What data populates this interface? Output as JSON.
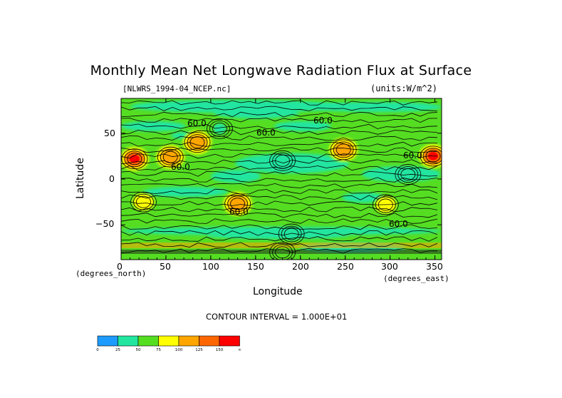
{
  "chart_data": {
    "type": "heatmap",
    "title": "Monthly Mean Net Longwave Radiation Flux at Surface",
    "subtitle_left": "[NLWRS_1994-04_NCEP.nc]",
    "subtitle_right": "(units:W/m^2)",
    "xlabel": "Longitude",
    "ylabel": "Latitude",
    "x_units": "(degrees_east)",
    "y_units": "(degrees_north)",
    "xlim": [
      0,
      357.5
    ],
    "ylim": [
      -88,
      88
    ],
    "x_ticks": [
      0,
      50,
      100,
      150,
      200,
      250,
      300,
      350
    ],
    "y_ticks": [
      50,
      0,
      -50
    ],
    "x_tick_labels": [
      "0",
      "50",
      "100",
      "150",
      "200",
      "250",
      "300",
      "350"
    ],
    "y_tick_labels": [
      "50",
      "0",
      "−50"
    ],
    "contour_interval_text": "CONTOUR INTERVAL = 1.000E+01",
    "contour_labels": [
      "60.0",
      "60.0",
      "60.0",
      "60.0",
      "60.0",
      "60.0",
      "60.0"
    ],
    "colorbar": {
      "levels": [
        0,
        25,
        50,
        75,
        100,
        125,
        150
      ],
      "labels": [
        "0",
        "25",
        "50",
        "75",
        "100",
        "125",
        "150",
        "∞"
      ],
      "colors": [
        "#1e9bff",
        "#22e5a0",
        "#55dd22",
        "#ffff00",
        "#ffa500",
        "#ff6600",
        "#ff0000"
      ]
    },
    "features": [
      {
        "lon": 15,
        "lat": 22,
        "value": 130
      },
      {
        "lon": 55,
        "lat": 24,
        "value": 115
      },
      {
        "lon": 85,
        "lat": 40,
        "value": 105
      },
      {
        "lon": 25,
        "lat": -25,
        "value": 85
      },
      {
        "lon": 130,
        "lat": -27,
        "value": 110
      },
      {
        "lon": 248,
        "lat": 32,
        "value": 112
      },
      {
        "lon": 295,
        "lat": -28,
        "value": 90
      },
      {
        "lon": 348,
        "lat": 25,
        "value": 128
      },
      {
        "lon": 180,
        "lat": 20,
        "value": 30
      },
      {
        "lon": 110,
        "lat": 55,
        "value": 40
      },
      {
        "lon": 320,
        "lat": 5,
        "value": 35
      },
      {
        "lon": 190,
        "lat": -60,
        "value": 45
      },
      {
        "lon": 180,
        "lat": -80,
        "value": 70
      }
    ]
  }
}
